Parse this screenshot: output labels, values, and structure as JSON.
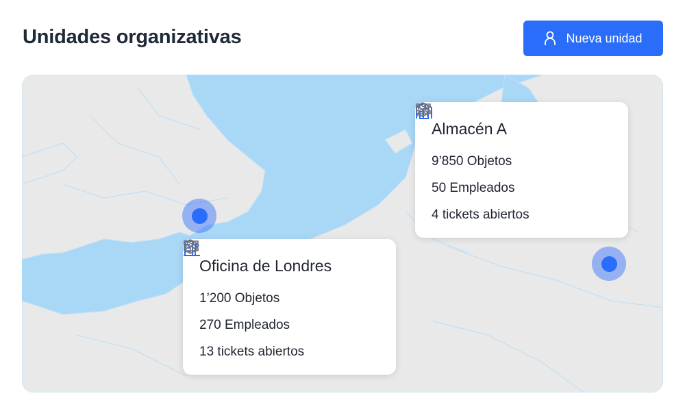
{
  "header": {
    "title": "Unidades organizativas",
    "new_unit_label": "Nueva unidad",
    "new_unit_icon": "user-icon"
  },
  "colors": {
    "accent": "#2a6dfb",
    "water": "#a9d7f6",
    "land": "#e8e8e8"
  },
  "units": [
    {
      "name": "Almacén A",
      "icon": "warehouse-icon",
      "objects": "9’850 Objetos",
      "employees": "50 Empleados",
      "tickets": "4 tickets abiertos"
    },
    {
      "name": "Oficina de Londres",
      "icon": "office-building-icon",
      "objects": "1’200 Objetos",
      "employees": "270 Empleados",
      "tickets": "13 tickets abiertos"
    }
  ]
}
